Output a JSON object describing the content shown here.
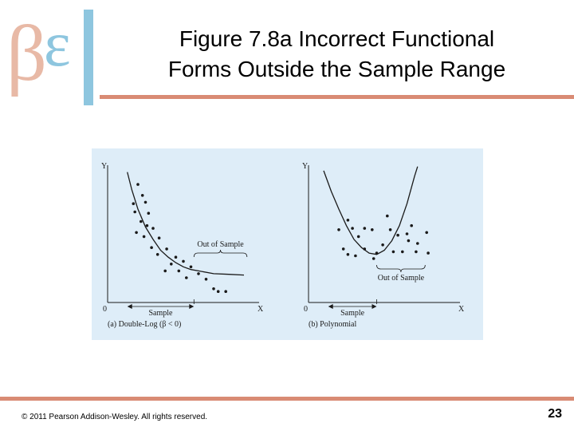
{
  "logo": {
    "glyphs": "βεδ",
    "colors": {
      "beta": "#e8b9a6",
      "delta": "#8ec6df"
    }
  },
  "title": {
    "line1": "Figure 7.8a Incorrect Functional",
    "line2": "Forms Outside the Sample Range"
  },
  "colors": {
    "accent_rule": "#d98b74",
    "figure_bg": "#deedf8",
    "ink": "#1a1a1a"
  },
  "footer": {
    "copyright": "© 2011 Pearson Addison-Wesley. All rights reserved.",
    "page_number": "23"
  },
  "chart_data": [
    {
      "type": "scatter",
      "caption": "(a) Double-Log (β < 0)",
      "xlabel": "X",
      "ylabel": "Y",
      "origin_label": "0",
      "sample_label": "Sample",
      "out_of_sample_label": "Out of Sample",
      "xlim": [
        0,
        10
      ],
      "ylim": [
        0,
        10
      ],
      "points": [
        [
          2.0,
          8.6
        ],
        [
          2.3,
          7.8
        ],
        [
          1.7,
          7.2
        ],
        [
          2.5,
          7.3
        ],
        [
          1.8,
          6.6
        ],
        [
          2.7,
          6.5
        ],
        [
          2.2,
          5.9
        ],
        [
          2.6,
          5.6
        ],
        [
          3.0,
          5.4
        ],
        [
          1.9,
          5.1
        ],
        [
          2.4,
          4.8
        ],
        [
          3.4,
          4.7
        ],
        [
          2.9,
          4.0
        ],
        [
          3.9,
          3.9
        ],
        [
          3.3,
          3.5
        ],
        [
          4.5,
          3.3
        ],
        [
          5.0,
          3.0
        ],
        [
          4.2,
          2.8
        ],
        [
          5.5,
          2.6
        ],
        [
          4.7,
          2.3
        ],
        [
          3.8,
          2.3
        ],
        [
          6.0,
          2.1
        ],
        [
          5.2,
          1.8
        ],
        [
          6.5,
          1.7
        ],
        [
          7.0,
          1.0
        ],
        [
          7.3,
          0.8
        ],
        [
          7.8,
          0.8
        ]
      ],
      "curve": [
        [
          1.3,
          9.5
        ],
        [
          1.6,
          8.2
        ],
        [
          2.0,
          6.8
        ],
        [
          2.5,
          5.5
        ],
        [
          3.0,
          4.6
        ],
        [
          3.5,
          3.8
        ],
        [
          4.0,
          3.3
        ],
        [
          4.5,
          2.9
        ],
        [
          5.0,
          2.6
        ],
        [
          5.5,
          2.4
        ],
        [
          6.0,
          2.3
        ],
        [
          7.0,
          2.1
        ],
        [
          8.0,
          2.05
        ],
        [
          9.0,
          2.0
        ]
      ],
      "sample_range": [
        1.3,
        5.7
      ],
      "out_of_sample_range": [
        5.7,
        9.2
      ]
    },
    {
      "type": "scatter",
      "caption": "(b) Polynomial",
      "xlabel": "X",
      "ylabel": "Y",
      "origin_label": "0",
      "sample_label": "Sample",
      "out_of_sample_label": "Out of Sample",
      "xlim": [
        0,
        10
      ],
      "ylim": [
        0,
        10
      ],
      "points": [
        [
          2.0,
          5.3
        ],
        [
          2.6,
          6.0
        ],
        [
          2.9,
          5.4
        ],
        [
          3.3,
          4.8
        ],
        [
          3.7,
          5.4
        ],
        [
          4.2,
          5.3
        ],
        [
          2.3,
          3.9
        ],
        [
          2.6,
          3.5
        ],
        [
          3.1,
          3.4
        ],
        [
          3.7,
          3.9
        ],
        [
          4.3,
          3.2
        ],
        [
          4.9,
          4.2
        ],
        [
          5.4,
          5.3
        ],
        [
          5.6,
          3.7
        ],
        [
          6.2,
          3.7
        ],
        [
          6.8,
          5.6
        ],
        [
          5.9,
          4.9
        ],
        [
          6.5,
          5.0
        ],
        [
          7.2,
          4.3
        ],
        [
          7.9,
          3.6
        ],
        [
          7.1,
          3.7
        ],
        [
          6.6,
          4.5
        ],
        [
          5.2,
          6.3
        ],
        [
          7.8,
          5.1
        ],
        [
          4.5,
          3.6
        ]
      ],
      "curve": [
        [
          1.0,
          9.6
        ],
        [
          1.5,
          8.1
        ],
        [
          2.0,
          6.8
        ],
        [
          2.5,
          5.6
        ],
        [
          3.0,
          4.6
        ],
        [
          3.5,
          4.0
        ],
        [
          4.0,
          3.6
        ],
        [
          4.5,
          3.5
        ],
        [
          5.0,
          3.8
        ],
        [
          5.5,
          4.5
        ],
        [
          6.0,
          5.6
        ],
        [
          6.5,
          7.2
        ],
        [
          7.0,
          9.2
        ],
        [
          7.2,
          9.9
        ]
      ],
      "sample_range": [
        1.3,
        4.5
      ],
      "out_of_sample_range": [
        4.5,
        7.7
      ]
    }
  ]
}
